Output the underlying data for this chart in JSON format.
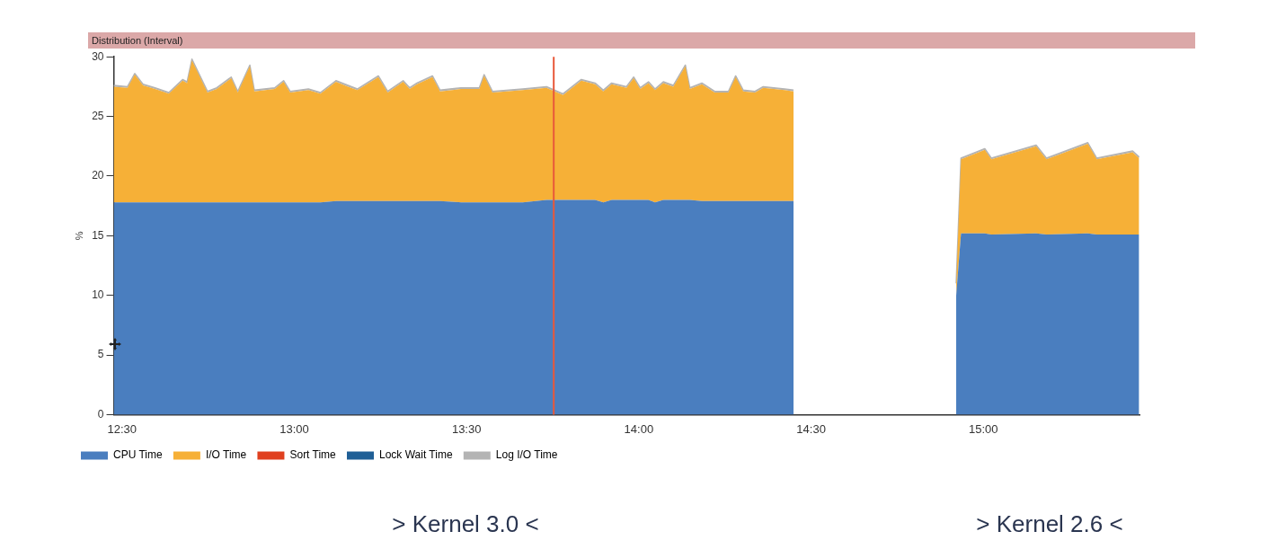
{
  "chart_data": {
    "type": "area",
    "title": "Distribution (Interval)",
    "ylabel": "%",
    "stacked": true,
    "legend": "bottom left",
    "annotations": [
      "> Kernel 3.0 <",
      "> Kernel 2.6 <"
    ],
    "x": [
      12.476,
      12.516,
      12.537,
      12.561,
      12.596,
      12.636,
      12.676,
      12.689,
      12.703,
      12.748,
      12.775,
      12.817,
      12.836,
      12.871,
      12.884,
      12.943,
      12.969,
      12.988,
      13.041,
      13.076,
      13.121,
      13.156,
      13.183,
      13.244,
      13.271,
      13.316,
      13.335,
      13.356,
      13.401,
      13.423,
      13.484,
      13.537,
      13.551,
      13.575,
      13.663,
      13.732,
      13.78,
      13.833,
      13.873,
      13.897,
      13.921,
      13.964,
      13.985,
      14.004,
      14.028,
      14.047,
      14.071,
      14.1,
      14.135,
      14.148,
      14.183,
      14.22,
      14.26,
      14.281,
      14.303,
      14.337,
      14.361,
      14.423,
      14.449,
      14.7,
      14.921,
      14.935,
      15.004,
      15.023,
      15.153,
      15.183,
      15.303,
      15.329,
      15.433,
      15.452
    ],
    "xlim": [
      12.476,
      15.453
    ],
    "xticks": [
      {
        "value": 12.5,
        "label": "12:30"
      },
      {
        "value": 13,
        "label": "13:00"
      },
      {
        "value": 13.5,
        "label": "13:30"
      },
      {
        "value": 14,
        "label": "14:00"
      },
      {
        "value": 14.5,
        "label": "14:30"
      },
      {
        "value": 15,
        "label": "15:00"
      }
    ],
    "ylim": [
      0,
      30
    ],
    "yticks": [
      0,
      5,
      10,
      15,
      20,
      25,
      30
    ],
    "ref_lines": [
      {
        "axis": "x",
        "value": 13.753,
        "color": "#e8583a"
      }
    ],
    "series": [
      {
        "name": "CPU Time",
        "color": "#4a7ebf",
        "values": [
          17.8,
          17.8,
          17.8,
          17.8,
          17.8,
          17.8,
          17.8,
          17.8,
          17.8,
          17.8,
          17.8,
          17.8,
          17.8,
          17.8,
          17.8,
          17.8,
          17.8,
          17.8,
          17.8,
          17.8,
          17.9,
          17.9,
          17.9,
          17.9,
          17.9,
          17.9,
          17.9,
          17.9,
          17.9,
          17.9,
          17.8,
          17.8,
          17.8,
          17.8,
          17.8,
          18.0,
          18.0,
          18.0,
          18.0,
          17.8,
          18.0,
          18.0,
          18.0,
          18.0,
          18.0,
          17.8,
          18.0,
          18.0,
          18.0,
          18.0,
          17.9,
          17.9,
          17.9,
          17.9,
          17.9,
          17.9,
          17.9,
          17.9,
          17.9,
          null,
          10.0,
          15.2,
          15.2,
          15.1,
          15.2,
          15.1,
          15.2,
          15.1,
          15.1,
          15.1
        ]
      },
      {
        "name": "I/O Time",
        "color": "#f6b037",
        "values": [
          9.7,
          9.6,
          10.7,
          9.8,
          9.5,
          9.1,
          10.2,
          10.0,
          11.9,
          9.2,
          9.5,
          10.4,
          9.2,
          11.4,
          9.3,
          9.5,
          10.1,
          9.2,
          9.4,
          9.1,
          10.0,
          9.6,
          9.3,
          10.4,
          9.1,
          10.0,
          9.4,
          9.8,
          10.4,
          9.2,
          9.5,
          9.5,
          10.6,
          9.2,
          9.4,
          9.4,
          8.8,
          10.0,
          9.7,
          9.3,
          9.7,
          9.4,
          10.2,
          9.3,
          9.8,
          9.4,
          9.8,
          9.5,
          11.2,
          9.3,
          9.8,
          9.1,
          9.1,
          10.4,
          9.2,
          9.1,
          9.5,
          9.3,
          9.2,
          null,
          0.9,
          6.2,
          7.0,
          6.3,
          7.3,
          6.3,
          7.5,
          6.3,
          6.9,
          6.4
        ]
      },
      {
        "name": "Sort Time",
        "color": "#e0401f",
        "values": [
          null,
          null,
          null,
          null,
          null,
          null,
          null,
          null,
          null,
          null,
          null,
          null,
          null,
          null,
          null,
          null,
          null,
          null,
          null,
          null,
          null,
          null,
          null,
          null,
          null,
          null,
          null,
          null,
          null,
          null,
          null,
          null,
          null,
          null,
          null,
          null,
          null,
          null,
          null,
          null,
          null,
          null,
          null,
          null,
          null,
          null,
          null,
          null,
          null,
          null,
          null,
          null,
          null,
          null,
          null,
          null,
          null,
          null,
          null,
          null,
          null,
          null,
          null,
          null,
          null,
          null,
          null,
          null,
          null,
          null
        ]
      },
      {
        "name": "Lock Wait Time",
        "color": "#1f5f96",
        "values": [
          null,
          null,
          null,
          null,
          null,
          null,
          null,
          null,
          null,
          null,
          null,
          null,
          null,
          null,
          null,
          null,
          null,
          null,
          null,
          null,
          null,
          null,
          null,
          null,
          null,
          null,
          null,
          null,
          null,
          null,
          null,
          null,
          null,
          null,
          null,
          null,
          null,
          null,
          null,
          null,
          null,
          null,
          null,
          null,
          null,
          null,
          null,
          null,
          null,
          null,
          null,
          null,
          null,
          null,
          null,
          null,
          null,
          null,
          null,
          null,
          null,
          null,
          null,
          null,
          null,
          null,
          null,
          null,
          null,
          null
        ]
      },
      {
        "name": "Log I/O Time",
        "color": "#b4b4b4",
        "values": [
          0.1,
          0.1,
          0.1,
          0.1,
          0.1,
          0.1,
          0.1,
          0.1,
          0.1,
          0.1,
          0.1,
          0.1,
          0.1,
          0.1,
          0.1,
          0.1,
          0.1,
          0.1,
          0.1,
          0.1,
          0.1,
          0.1,
          0.1,
          0.1,
          0.1,
          0.1,
          0.1,
          0.1,
          0.1,
          0.1,
          0.1,
          0.1,
          0.1,
          0.1,
          0.1,
          0.1,
          0.1,
          0.1,
          0.1,
          0.1,
          0.1,
          0.1,
          0.1,
          0.1,
          0.1,
          0.1,
          0.1,
          0.1,
          0.1,
          0.1,
          0.1,
          0.1,
          0.1,
          0.1,
          0.1,
          0.1,
          0.1,
          0.1,
          0.1,
          null,
          0.1,
          0.1,
          0.1,
          0.1,
          0.1,
          0.1,
          0.1,
          0.1,
          0.1,
          0.1
        ]
      }
    ]
  }
}
